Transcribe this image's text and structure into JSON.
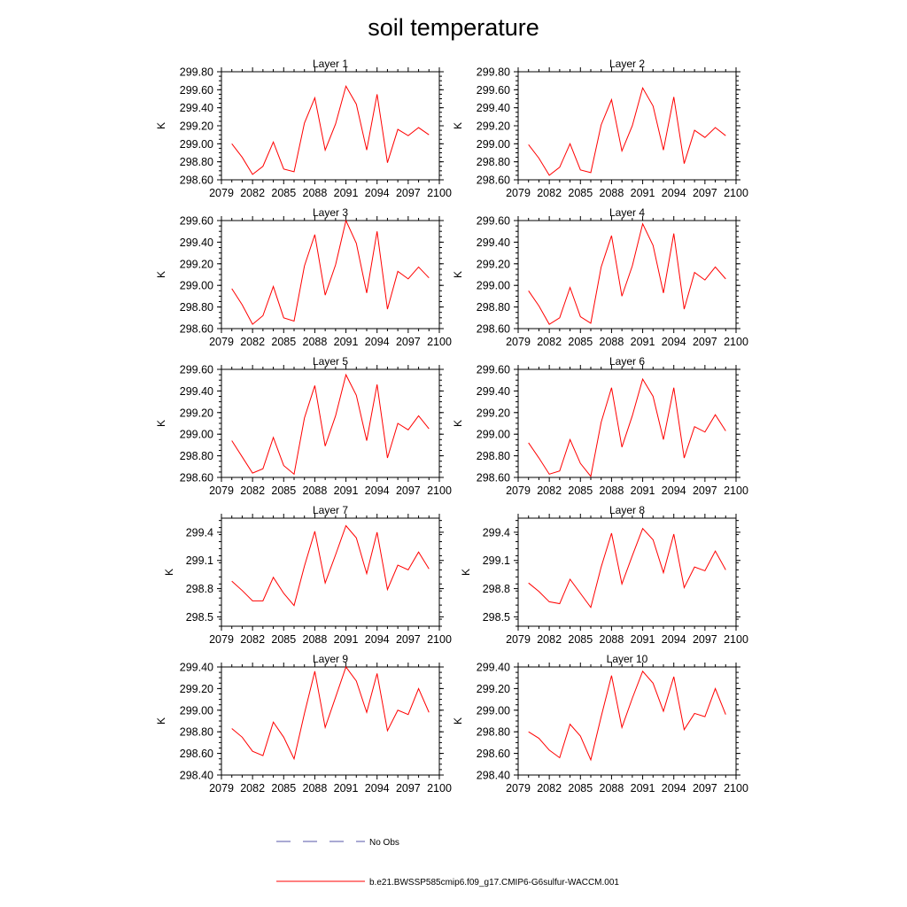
{
  "chart_data": {
    "type": "line",
    "title": "soil temperature",
    "x_ticks": [
      "2079",
      "2082",
      "2085",
      "2088",
      "2091",
      "2094",
      "2097",
      "2100"
    ],
    "xlim": [
      2079,
      2100
    ],
    "x": [
      2080,
      2081,
      2082,
      2083,
      2084,
      2085,
      2086,
      2087,
      2088,
      2089,
      2090,
      2091,
      2092,
      2093,
      2094,
      2095,
      2096,
      2097,
      2098,
      2099
    ],
    "series_color": "#ff0000",
    "legend": [
      {
        "label": "No Obs",
        "color": "#5555aa",
        "dash": true
      },
      {
        "label": "b.e21.BWSSP585cmip6.f09_g17.CMIP6-G6sulfur-WACCM.001",
        "color": "#ff0000",
        "dash": false
      }
    ],
    "panels": [
      {
        "title": "Layer 1",
        "ylabel": "K",
        "ylim": [
          298.6,
          299.8
        ],
        "yticks": [
          "298.60",
          "298.80",
          "299.00",
          "299.20",
          "299.40",
          "299.60",
          "299.80"
        ],
        "values": [
          299.0,
          298.85,
          298.66,
          298.75,
          299.02,
          298.72,
          298.69,
          299.23,
          299.51,
          298.93,
          299.22,
          299.64,
          299.44,
          298.93,
          299.55,
          298.79,
          299.16,
          299.09,
          299.18,
          299.1
        ]
      },
      {
        "title": "Layer 2",
        "ylabel": "K",
        "ylim": [
          298.6,
          299.8
        ],
        "yticks": [
          "298.60",
          "298.80",
          "299.00",
          "299.20",
          "299.40",
          "299.60",
          "299.80"
        ],
        "values": [
          298.99,
          298.84,
          298.65,
          298.74,
          299.0,
          298.71,
          298.68,
          299.21,
          299.49,
          298.92,
          299.2,
          299.62,
          299.42,
          298.93,
          299.52,
          298.78,
          299.15,
          299.07,
          299.18,
          299.09
        ]
      },
      {
        "title": "Layer 3",
        "ylabel": "K",
        "ylim": [
          298.6,
          299.6
        ],
        "yticks": [
          "298.60",
          "298.80",
          "299.00",
          "299.20",
          "299.40",
          "299.60"
        ],
        "values": [
          298.97,
          298.82,
          298.64,
          298.72,
          298.99,
          298.7,
          298.67,
          299.18,
          299.47,
          298.91,
          299.19,
          299.6,
          299.39,
          298.93,
          299.5,
          298.78,
          299.13,
          299.06,
          299.17,
          299.07
        ]
      },
      {
        "title": "Layer 4",
        "ylabel": "K",
        "ylim": [
          298.6,
          299.6
        ],
        "yticks": [
          "298.60",
          "298.80",
          "299.00",
          "299.20",
          "299.40",
          "299.60"
        ],
        "values": [
          298.95,
          298.81,
          298.64,
          298.7,
          298.98,
          298.71,
          298.65,
          299.17,
          299.46,
          298.9,
          299.18,
          299.57,
          299.37,
          298.93,
          299.48,
          298.78,
          299.12,
          299.05,
          299.17,
          299.06
        ]
      },
      {
        "title": "Layer 5",
        "ylabel": "K",
        "ylim": [
          298.6,
          299.6
        ],
        "yticks": [
          "298.60",
          "298.80",
          "299.00",
          "299.20",
          "299.40",
          "299.60"
        ],
        "values": [
          298.94,
          298.79,
          298.64,
          298.68,
          298.97,
          298.71,
          298.63,
          299.15,
          299.45,
          298.89,
          299.17,
          299.55,
          299.36,
          298.94,
          299.46,
          298.78,
          299.1,
          299.04,
          299.17,
          299.05
        ]
      },
      {
        "title": "Layer 6",
        "ylabel": "K",
        "ylim": [
          298.6,
          299.6
        ],
        "yticks": [
          "298.60",
          "298.80",
          "299.00",
          "299.20",
          "299.40",
          "299.60"
        ],
        "values": [
          298.92,
          298.78,
          298.63,
          298.66,
          298.95,
          298.73,
          298.61,
          299.11,
          299.43,
          298.88,
          299.17,
          299.51,
          299.35,
          298.95,
          299.43,
          298.78,
          299.07,
          299.02,
          299.18,
          299.03
        ]
      },
      {
        "title": "Layer 7",
        "ylabel": "K",
        "ylim": [
          298.4,
          299.55
        ],
        "yticks": [
          "298.5",
          "298.8",
          "299.1",
          "299.4"
        ],
        "values": [
          298.88,
          298.78,
          298.67,
          298.67,
          298.92,
          298.75,
          298.62,
          299.04,
          299.41,
          298.86,
          299.16,
          299.47,
          299.34,
          298.96,
          299.4,
          298.79,
          299.05,
          299.0,
          299.19,
          299.01
        ]
      },
      {
        "title": "Layer 8",
        "ylabel": "K",
        "ylim": [
          298.4,
          299.55
        ],
        "yticks": [
          "298.5",
          "298.8",
          "299.1",
          "299.4"
        ],
        "values": [
          298.86,
          298.77,
          298.66,
          298.64,
          298.9,
          298.75,
          298.6,
          299.03,
          299.39,
          298.85,
          299.15,
          299.44,
          299.32,
          298.97,
          299.38,
          298.81,
          299.03,
          298.99,
          299.2,
          299.0
        ]
      },
      {
        "title": "Layer 9",
        "ylabel": "K",
        "ylim": [
          298.4,
          299.4
        ],
        "yticks": [
          "298.40",
          "298.60",
          "298.80",
          "299.00",
          "299.20",
          "299.40"
        ],
        "values": [
          298.83,
          298.75,
          298.62,
          298.58,
          298.89,
          298.75,
          298.55,
          298.97,
          299.36,
          298.84,
          299.12,
          299.4,
          299.27,
          298.98,
          299.34,
          298.81,
          299.0,
          298.96,
          299.2,
          298.98
        ]
      },
      {
        "title": "Layer 10",
        "ylabel": "K",
        "ylim": [
          298.4,
          299.4
        ],
        "yticks": [
          "298.40",
          "298.60",
          "298.80",
          "299.00",
          "299.20",
          "299.40"
        ],
        "values": [
          298.8,
          298.74,
          298.63,
          298.56,
          298.87,
          298.76,
          298.54,
          298.94,
          299.32,
          298.84,
          299.11,
          299.36,
          299.25,
          298.99,
          299.31,
          298.82,
          298.97,
          298.94,
          299.2,
          298.96
        ]
      }
    ]
  }
}
